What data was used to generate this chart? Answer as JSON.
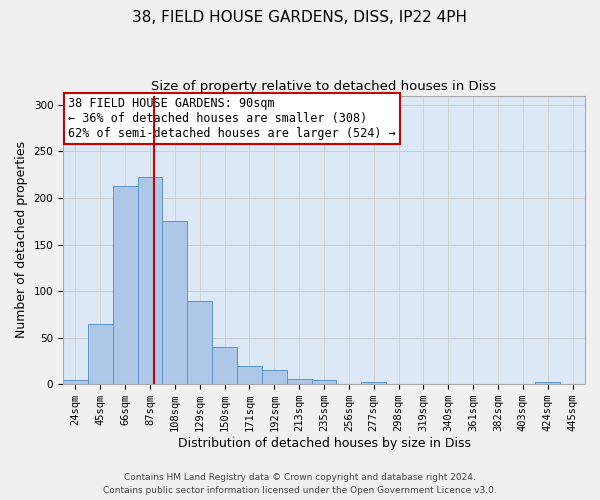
{
  "title1": "38, FIELD HOUSE GARDENS, DISS, IP22 4PH",
  "title2": "Size of property relative to detached houses in Diss",
  "xlabel": "Distribution of detached houses by size in Diss",
  "ylabel": "Number of detached properties",
  "bar_labels": [
    "24sqm",
    "45sqm",
    "66sqm",
    "87sqm",
    "108sqm",
    "129sqm",
    "150sqm",
    "171sqm",
    "192sqm",
    "213sqm",
    "235sqm",
    "256sqm",
    "277sqm",
    "298sqm",
    "319sqm",
    "340sqm",
    "361sqm",
    "382sqm",
    "403sqm",
    "424sqm",
    "445sqm"
  ],
  "bar_heights": [
    5,
    65,
    213,
    222,
    175,
    89,
    40,
    20,
    15,
    6,
    5,
    0,
    2,
    0,
    0,
    0,
    0,
    0,
    0,
    2,
    0
  ],
  "bar_color": "#aec6e8",
  "bar_edge_color": "#5a96c8",
  "vline_pos": 3.14,
  "vline_color": "#cc0000",
  "annotation_text": "38 FIELD HOUSE GARDENS: 90sqm\n← 36% of detached houses are smaller (308)\n62% of semi-detached houses are larger (524) →",
  "annotation_box_color": "#ffffff",
  "annotation_box_edge": "#cc0000",
  "ylim": [
    0,
    310
  ],
  "yticks": [
    0,
    50,
    100,
    150,
    200,
    250,
    300
  ],
  "grid_color": "#cccccc",
  "bg_color": "#dce8f5",
  "fig_bg_color": "#f0f0f0",
  "footer1": "Contains HM Land Registry data © Crown copyright and database right 2024.",
  "footer2": "Contains public sector information licensed under the Open Government Licence v3.0.",
  "title1_fontsize": 11,
  "title2_fontsize": 9.5,
  "xlabel_fontsize": 9,
  "ylabel_fontsize": 9,
  "tick_fontsize": 7.5,
  "annotation_fontsize": 8.5,
  "footer_fontsize": 6.5
}
